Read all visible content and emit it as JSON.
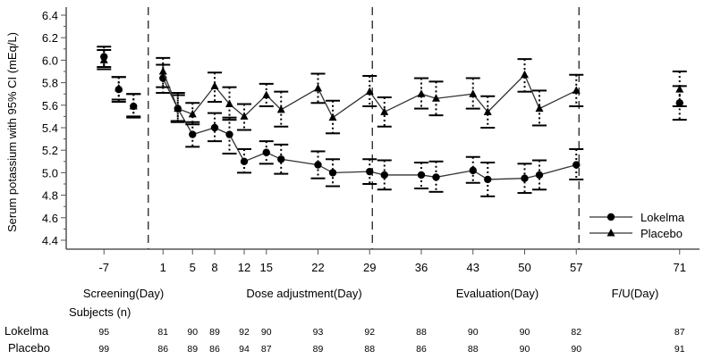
{
  "chart_data": {
    "type": "line",
    "title": "",
    "ylabel": "Serum potassium with 95% CI (mEq/L)",
    "xlabel": "",
    "ylim": [
      4.4,
      6.4
    ],
    "yticks": [
      "4.4",
      "4.6",
      "4.8",
      "5.0",
      "5.2",
      "5.4",
      "5.6",
      "5.8",
      "6.0",
      "6.2",
      "6.4"
    ],
    "ytick_values": [
      4.4,
      4.6,
      4.8,
      5.0,
      5.2,
      5.4,
      5.6,
      5.8,
      6.0,
      6.2,
      6.4
    ],
    "xlim": [
      -14,
      77
    ],
    "xticks": [
      "-7",
      "1",
      "5",
      "8",
      "12",
      "15",
      "22",
      "29",
      "36",
      "43",
      "50",
      "57",
      "71"
    ],
    "xtick_values": [
      -7,
      1,
      5,
      8,
      12,
      15,
      22,
      29,
      36,
      43,
      50,
      57,
      71
    ],
    "phase_dividers": [
      -1,
      29,
      57
    ],
    "phases": [
      {
        "label": "Screening(Day)",
        "center_day": -3
      },
      {
        "label": "Dose adjustment(Day)",
        "center_day": 15
      },
      {
        "label": "Evaluation(Day)",
        "center_day": 43
      },
      {
        "label": "F/U(Day)",
        "center_day": 64
      }
    ],
    "legend_position": "bottom-right",
    "series": [
      {
        "name": "Lokelma",
        "marker": "circle",
        "segments": [
          [
            {
              "x": -7,
              "y": 6.03,
              "lo": 5.92,
              "hi": 6.12
            }
          ],
          [
            {
              "x": -5,
              "y": 5.74,
              "lo": 5.63,
              "hi": 5.85
            }
          ],
          [
            {
              "x": -3,
              "y": 5.59,
              "lo": 5.49,
              "hi": 5.7
            }
          ],
          [
            {
              "x": 1,
              "y": 5.84,
              "lo": 5.71,
              "hi": 5.96
            },
            {
              "x": 3,
              "y": 5.57,
              "lo": 5.45,
              "hi": 5.69
            },
            {
              "x": 5,
              "y": 5.34,
              "lo": 5.23,
              "hi": 5.45
            },
            {
              "x": 8,
              "y": 5.4,
              "lo": 5.28,
              "hi": 5.53
            },
            {
              "x": 10,
              "y": 5.34,
              "lo": 5.17,
              "hi": 5.49
            },
            {
              "x": 12,
              "y": 5.1,
              "lo": 5.0,
              "hi": 5.21
            },
            {
              "x": 15,
              "y": 5.18,
              "lo": 5.08,
              "hi": 5.28
            },
            {
              "x": 17,
              "y": 5.12,
              "lo": 4.99,
              "hi": 5.25
            },
            {
              "x": 22,
              "y": 5.07,
              "lo": 4.95,
              "hi": 5.19
            },
            {
              "x": 24,
              "y": 5.0,
              "lo": 4.88,
              "hi": 5.12
            },
            {
              "x": 29,
              "y": 5.01,
              "lo": 4.9,
              "hi": 5.12
            },
            {
              "x": 31,
              "y": 4.98,
              "lo": 4.85,
              "hi": 5.11
            },
            {
              "x": 36,
              "y": 4.98,
              "lo": 4.86,
              "hi": 5.09
            },
            {
              "x": 38,
              "y": 4.96,
              "lo": 4.83,
              "hi": 5.1
            },
            {
              "x": 43,
              "y": 5.02,
              "lo": 4.91,
              "hi": 5.14
            },
            {
              "x": 45,
              "y": 4.94,
              "lo": 4.79,
              "hi": 5.09
            },
            {
              "x": 50,
              "y": 4.95,
              "lo": 4.82,
              "hi": 5.08
            },
            {
              "x": 52,
              "y": 4.98,
              "lo": 4.85,
              "hi": 5.11
            },
            {
              "x": 57,
              "y": 5.07,
              "lo": 4.94,
              "hi": 5.21
            }
          ],
          [
            {
              "x": 71,
              "y": 5.62,
              "lo": 5.47,
              "hi": 5.77
            }
          ]
        ]
      },
      {
        "name": "Placebo",
        "marker": "triangle",
        "segments": [
          [
            {
              "x": -7,
              "y": 6.0,
              "lo": 5.94,
              "hi": 6.09
            }
          ],
          [
            {
              "x": -5,
              "y": 5.75,
              "lo": 5.65,
              "hi": 5.85
            }
          ],
          [
            {
              "x": -3,
              "y": 5.59,
              "lo": 5.5,
              "hi": 5.7
            }
          ],
          [
            {
              "x": 1,
              "y": 5.9,
              "lo": 5.76,
              "hi": 6.02
            },
            {
              "x": 3,
              "y": 5.57,
              "lo": 5.46,
              "hi": 5.71
            },
            {
              "x": 5,
              "y": 5.52,
              "lo": 5.43,
              "hi": 5.62
            },
            {
              "x": 8,
              "y": 5.77,
              "lo": 5.63,
              "hi": 5.89
            },
            {
              "x": 10,
              "y": 5.61,
              "lo": 5.47,
              "hi": 5.76
            },
            {
              "x": 12,
              "y": 5.5,
              "lo": 5.38,
              "hi": 5.61
            },
            {
              "x": 15,
              "y": 5.69,
              "lo": 5.59,
              "hi": 5.79
            },
            {
              "x": 17,
              "y": 5.56,
              "lo": 5.41,
              "hi": 5.72
            },
            {
              "x": 22,
              "y": 5.75,
              "lo": 5.62,
              "hi": 5.88
            },
            {
              "x": 24,
              "y": 5.49,
              "lo": 5.35,
              "hi": 5.64
            },
            {
              "x": 29,
              "y": 5.72,
              "lo": 5.59,
              "hi": 5.86
            },
            {
              "x": 31,
              "y": 5.54,
              "lo": 5.41,
              "hi": 5.67
            },
            {
              "x": 36,
              "y": 5.7,
              "lo": 5.57,
              "hi": 5.84
            },
            {
              "x": 38,
              "y": 5.66,
              "lo": 5.51,
              "hi": 5.81
            },
            {
              "x": 43,
              "y": 5.7,
              "lo": 5.57,
              "hi": 5.84
            },
            {
              "x": 45,
              "y": 5.54,
              "lo": 5.4,
              "hi": 5.68
            },
            {
              "x": 50,
              "y": 5.87,
              "lo": 5.72,
              "hi": 6.01
            },
            {
              "x": 52,
              "y": 5.57,
              "lo": 5.42,
              "hi": 5.73
            },
            {
              "x": 57,
              "y": 5.73,
              "lo": 5.59,
              "hi": 5.87
            }
          ],
          [
            {
              "x": 71,
              "y": 5.74,
              "lo": 5.59,
              "hi": 5.9
            }
          ]
        ]
      }
    ]
  },
  "subjects_table": {
    "title": "Subjects (n)",
    "rows": [
      {
        "label": "Lokelma",
        "cells": [
          {
            "day": -7,
            "n": "95"
          },
          {
            "day": 1,
            "n": "81"
          },
          {
            "day": 5,
            "n": "90"
          },
          {
            "day": 8,
            "n": "89"
          },
          {
            "day": 12,
            "n": "92"
          },
          {
            "day": 15,
            "n": "90"
          },
          {
            "day": 22,
            "n": "93"
          },
          {
            "day": 29,
            "n": "92"
          },
          {
            "day": 36,
            "n": "88"
          },
          {
            "day": 43,
            "n": "90"
          },
          {
            "day": 50,
            "n": "90"
          },
          {
            "day": 57,
            "n": "82"
          },
          {
            "day": 71,
            "n": "87"
          }
        ]
      },
      {
        "label": "Placebo",
        "cells": [
          {
            "day": -7,
            "n": "99"
          },
          {
            "day": 1,
            "n": "86"
          },
          {
            "day": 5,
            "n": "89"
          },
          {
            "day": 8,
            "n": "86"
          },
          {
            "day": 12,
            "n": "94"
          },
          {
            "day": 15,
            "n": "87"
          },
          {
            "day": 22,
            "n": "89"
          },
          {
            "day": 29,
            "n": "88"
          },
          {
            "day": 36,
            "n": "86"
          },
          {
            "day": 43,
            "n": "88"
          },
          {
            "day": 50,
            "n": "90"
          },
          {
            "day": 57,
            "n": "90"
          },
          {
            "day": 71,
            "n": "91"
          }
        ]
      }
    ]
  },
  "colors": {
    "line": "#000000",
    "axis": "#555555",
    "background": "#ffffff"
  }
}
